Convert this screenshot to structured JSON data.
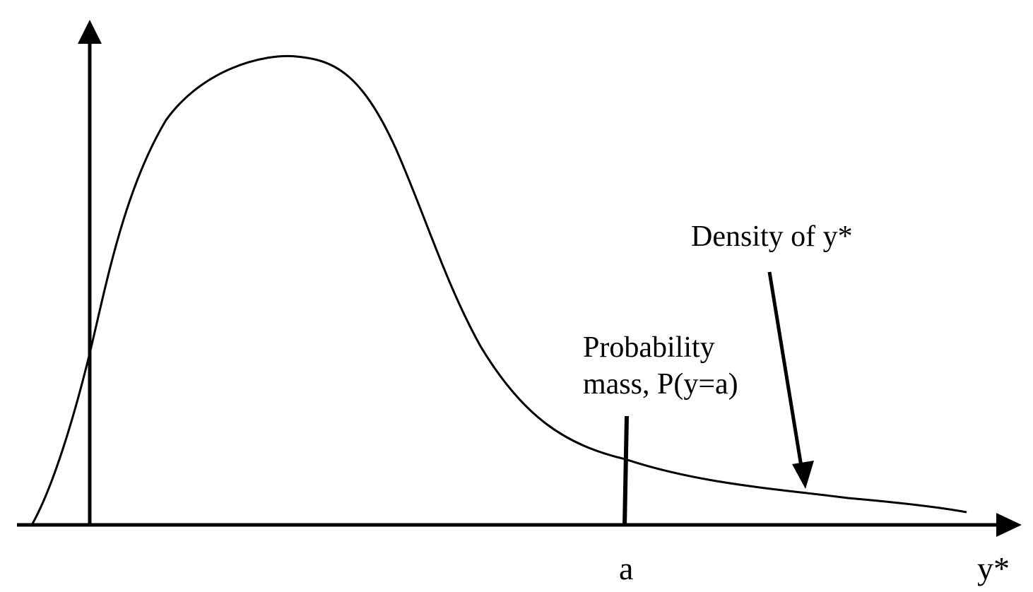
{
  "labels": {
    "density": "Density of y*",
    "mass_line1": "Probability",
    "mass_line2": "mass, P(y=a)",
    "point_a": "a",
    "x_axis": "y*"
  },
  "colors": {
    "ink": "#000000",
    "background": "#ffffff"
  }
}
